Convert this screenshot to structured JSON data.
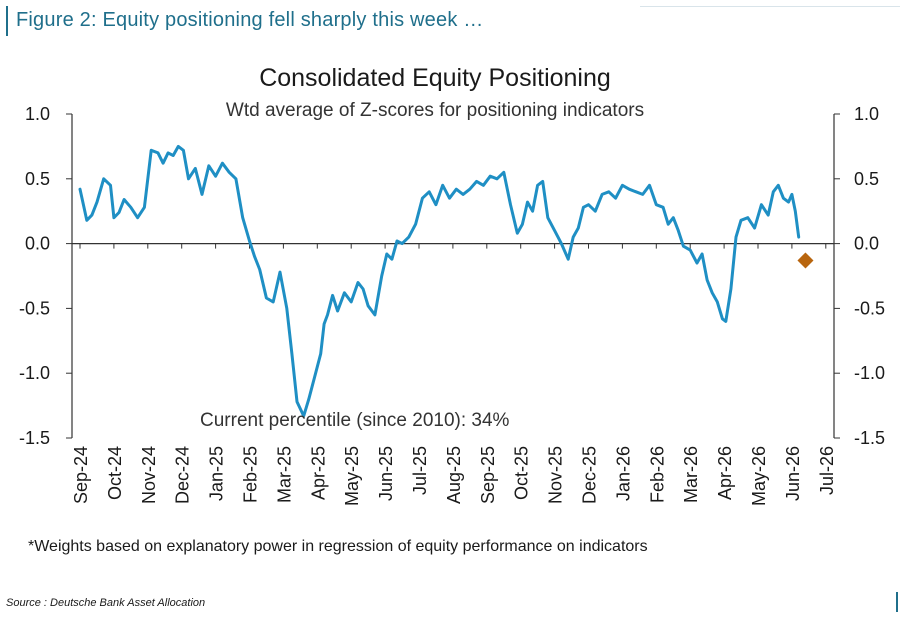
{
  "figure": {
    "heading": "Figure 2: Equity positioning fell sharply this week …",
    "footnote": "*Weights based on explanatory power in regression of equity performance on indicators",
    "source": "Source : Deutsche Bank Asset Allocation"
  },
  "colors": {
    "heading": "#1f6f8b",
    "series_line": "#1f8fc4",
    "marker": "#b8650e",
    "axis": "#333333"
  },
  "chart_data": {
    "type": "line",
    "title": "Consolidated Equity Positioning",
    "subtitle": "Wtd average of Z-scores for positioning indicators",
    "annotation": "Current percentile (since 2010): 34%",
    "xlabel": "",
    "ylabel": "",
    "ylim": [
      -1.5,
      1.0
    ],
    "y_ticks": [
      "1.0",
      "0.5",
      "0.0",
      "-0.5",
      "-1.0",
      "-1.5"
    ],
    "y_tick_values": [
      1.0,
      0.5,
      0.0,
      -0.5,
      -1.0,
      -1.5
    ],
    "right_axis_duplicate": true,
    "x_tick_labels": [
      "Sep-24",
      "Oct-24",
      "Nov-24",
      "Dec-24",
      "Jan-25",
      "Feb-25",
      "Mar-25",
      "Apr-25",
      "May-25",
      "Jun-25",
      "Jul-25",
      "Aug-25",
      "Sep-25",
      "Oct-25",
      "Nov-25",
      "Dec-25",
      "Jan-26",
      "Feb-26",
      "Mar-26",
      "Apr-26",
      "May-26",
      "Jun-26",
      "Jul-26"
    ],
    "grid": false,
    "legend": "none",
    "series": [
      {
        "x_unit": "month index (0 = Sep-24)",
        "x": [
          0,
          0.1,
          0.2,
          0.35,
          0.5,
          0.7,
          0.9,
          1.0,
          1.15,
          1.3,
          1.5,
          1.7,
          1.9,
          2.1,
          2.3,
          2.45,
          2.6,
          2.75,
          2.9,
          3.05,
          3.2,
          3.4,
          3.6,
          3.8,
          4.0,
          4.2,
          4.4,
          4.6,
          4.8,
          5.0,
          5.15,
          5.3,
          5.5,
          5.7,
          5.9,
          6.1,
          6.25,
          6.4,
          6.6,
          6.75,
          6.9,
          7.0,
          7.1,
          7.2,
          7.3,
          7.45,
          7.6,
          7.8,
          8.0,
          8.2,
          8.35,
          8.5,
          8.7,
          8.9,
          9.05,
          9.2,
          9.35,
          9.5,
          9.7,
          9.9,
          10.1,
          10.3,
          10.5,
          10.7,
          10.9,
          11.1,
          11.3,
          11.5,
          11.7,
          11.9,
          12.1,
          12.3,
          12.5,
          12.7,
          12.9,
          13.05,
          13.2,
          13.35,
          13.5,
          13.65,
          13.8,
          14.0,
          14.2,
          14.4,
          14.55,
          14.7,
          14.85,
          15.0,
          15.2,
          15.4,
          15.6,
          15.8,
          16.0,
          16.2,
          16.4,
          16.6,
          16.8,
          17.0,
          17.2,
          17.35,
          17.5,
          17.65,
          17.8,
          18.0,
          18.2,
          18.35,
          18.5,
          18.65,
          18.8,
          18.95,
          19.05,
          19.2,
          19.35,
          19.5,
          19.7,
          19.9,
          20.1,
          20.3,
          20.45,
          20.6,
          20.75,
          20.9,
          21.0,
          21.1,
          21.2
        ],
        "values": [
          0.42,
          0.3,
          0.18,
          0.22,
          0.32,
          0.5,
          0.45,
          0.2,
          0.24,
          0.34,
          0.28,
          0.2,
          0.28,
          0.72,
          0.7,
          0.62,
          0.7,
          0.68,
          0.75,
          0.72,
          0.5,
          0.58,
          0.38,
          0.6,
          0.52,
          0.62,
          0.55,
          0.5,
          0.2,
          0.02,
          -0.1,
          -0.2,
          -0.42,
          -0.45,
          -0.22,
          -0.5,
          -0.85,
          -1.22,
          -1.33,
          -1.2,
          -1.05,
          -0.95,
          -0.85,
          -0.62,
          -0.55,
          -0.4,
          -0.52,
          -0.38,
          -0.45,
          -0.3,
          -0.35,
          -0.48,
          -0.55,
          -0.25,
          -0.08,
          -0.12,
          0.02,
          0.0,
          0.05,
          0.15,
          0.35,
          0.4,
          0.3,
          0.45,
          0.35,
          0.42,
          0.38,
          0.42,
          0.48,
          0.45,
          0.52,
          0.5,
          0.55,
          0.3,
          0.08,
          0.15,
          0.32,
          0.25,
          0.45,
          0.48,
          0.2,
          0.1,
          0.0,
          -0.12,
          0.05,
          0.12,
          0.28,
          0.3,
          0.25,
          0.38,
          0.4,
          0.35,
          0.45,
          0.42,
          0.4,
          0.38,
          0.45,
          0.3,
          0.28,
          0.15,
          0.2,
          0.1,
          -0.02,
          -0.05,
          -0.15,
          -0.08,
          -0.28,
          -0.38,
          -0.45,
          -0.58,
          -0.6,
          -0.35,
          0.05,
          0.18,
          0.2,
          0.12,
          0.3,
          0.22,
          0.4,
          0.45,
          0.35,
          0.32,
          0.38,
          0.25,
          0.05
        ],
        "values_approximate": true
      }
    ],
    "latest_marker": {
      "x": 21.4,
      "value": -0.13,
      "shape": "diamond"
    }
  }
}
